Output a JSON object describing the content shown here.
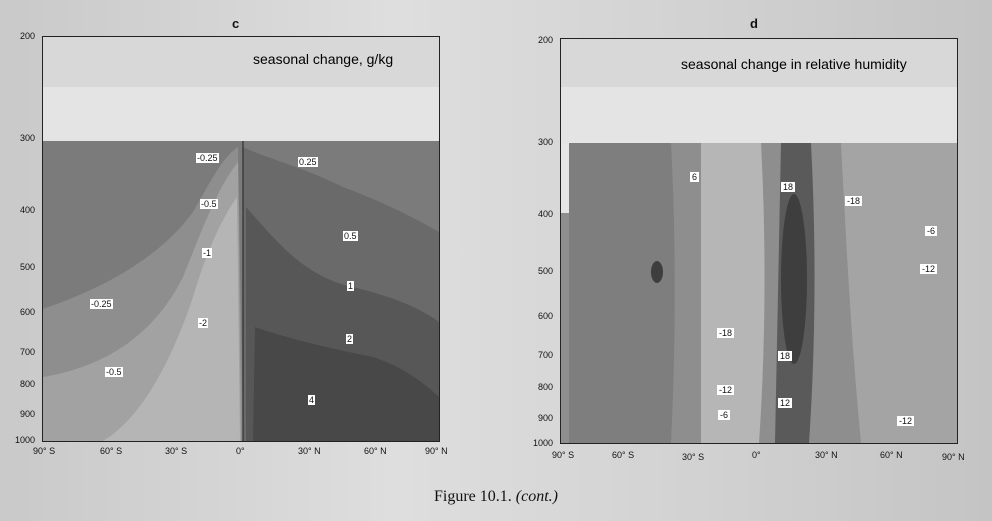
{
  "panels": [
    {
      "letter": "c",
      "inset_title": "seasonal change, g/kg",
      "y_ticks": [
        "200",
        "300",
        "400",
        "500",
        "600",
        "700",
        "800",
        "900",
        "1000"
      ],
      "x_ticks": [
        "90° S",
        "60° S",
        "30° S",
        "0°",
        "30° N",
        "60° N",
        "90° N"
      ],
      "contour_labels": [
        "-0.25",
        "0.25",
        "-0.5",
        "0.5",
        "-1",
        "1",
        "-2",
        "2",
        "4",
        "-0.25",
        "-0.5"
      ]
    },
    {
      "letter": "d",
      "inset_title": "seasonal change in relative humidity",
      "y_ticks": [
        "200",
        "300",
        "400",
        "500",
        "600",
        "700",
        "800",
        "900",
        "1000"
      ],
      "x_ticks": [
        "90° S",
        "60° S",
        "30° S",
        "0°",
        "30° N",
        "60° N",
        "90° N"
      ],
      "contour_labels": [
        "6",
        "18",
        "-18",
        "-6",
        "-12",
        "-18",
        "18",
        "-12",
        "12",
        "-6",
        "-12"
      ]
    }
  ],
  "caption": {
    "label": "Figure 10.1.",
    "note": "(cont.)"
  },
  "colors": {
    "dark": "#4a4a4a",
    "mid": "#7a7a7a",
    "light": "#a8a8a8",
    "lighter": "#bdbdbd",
    "top_band": "#e2e2e2"
  }
}
